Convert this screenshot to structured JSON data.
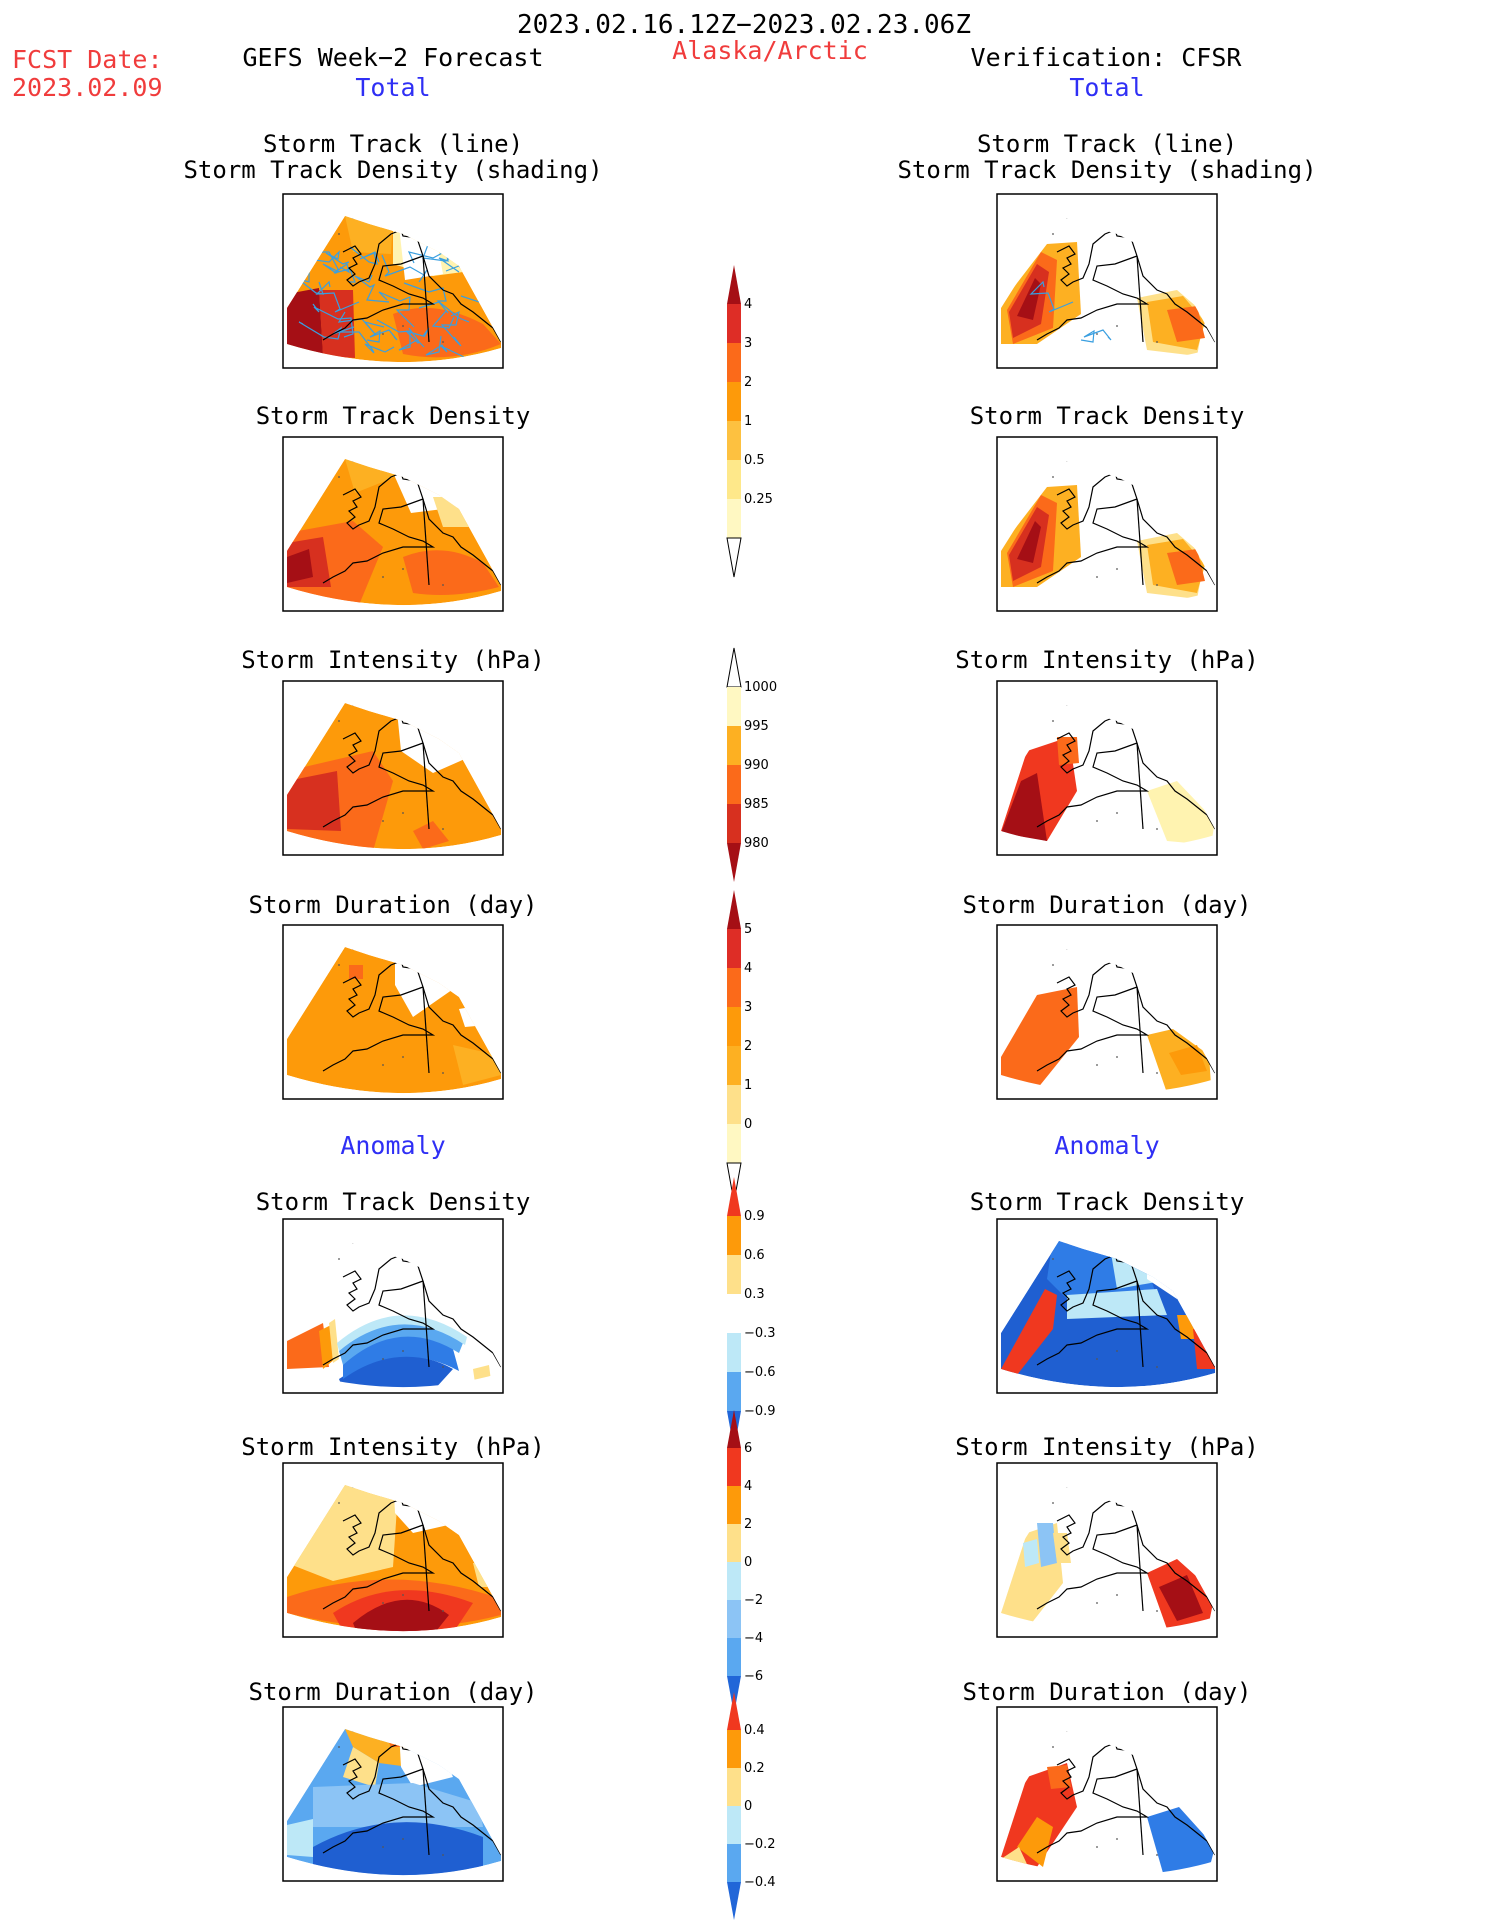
{
  "header": {
    "date_range": "2023.02.16.12Z−2023.02.23.06Z",
    "fcst_label": "FCST Date:",
    "fcst_date": "2023.02.09",
    "left_title": "GEFS Week−2 Forecast",
    "region": "Alaska/Arctic",
    "right_title": "Verification: CFSR"
  },
  "sections": {
    "total": "Total",
    "anomaly": "Anomaly"
  },
  "panel_titles": {
    "track_line": "Storm Track (line)",
    "track_shading": "Storm Track Density (shading)",
    "density": "Storm Track Density",
    "intensity": "Storm Intensity (hPa)",
    "duration": "Storm Duration (day)"
  },
  "colorbars": [
    {
      "name": "track-density-total",
      "labels": [
        "4",
        "3",
        "2",
        "1",
        "0.5",
        "0.25"
      ],
      "colors": [
        "#a50f15",
        "#de2d26",
        "#fb6a1a",
        "#fd9a0a",
        "#fdc140",
        "#fee88a",
        "#fff8c2",
        "#ffffff"
      ]
    },
    {
      "name": "intensity-total",
      "labels": [
        "1000",
        "995",
        "990",
        "985",
        "980"
      ],
      "colors": [
        "#ffffff",
        "#fff8c2",
        "#fdb022",
        "#fb6a1a",
        "#d7301f",
        "#a50f15"
      ]
    },
    {
      "name": "duration-total",
      "labels": [
        "5",
        "4",
        "3",
        "2",
        "1",
        "0"
      ],
      "colors": [
        "#a50f15",
        "#de2d26",
        "#fb6a1a",
        "#fd9a0a",
        "#fdb022",
        "#fee08a",
        "#fff8c2",
        "#ffffff"
      ]
    },
    {
      "name": "density-anomaly",
      "labels": [
        "0.9",
        "0.6",
        "0.3",
        "−0.3",
        "−0.6",
        "−0.9"
      ],
      "colors": [
        "#f0381f",
        "#fd9a0a",
        "#fee08a",
        "#ffffff",
        "#bde8f7",
        "#5aa8f0",
        "#2166d8"
      ]
    },
    {
      "name": "intensity-anomaly",
      "labels": [
        "6",
        "4",
        "2",
        "0",
        "−2",
        "−4",
        "−6"
      ],
      "colors": [
        "#a50f15",
        "#f0381f",
        "#fd9a0a",
        "#fee08a",
        "#bde8f7",
        "#8cc4f5",
        "#5aa8f0",
        "#2166d8"
      ]
    },
    {
      "name": "duration-anomaly",
      "labels": [
        "0.4",
        "0.2",
        "0",
        "−0.2",
        "−0.4"
      ],
      "colors": [
        "#f0381f",
        "#fd9a0a",
        "#fee08a",
        "#bde8f7",
        "#5aa8f0",
        "#2166d8"
      ]
    }
  ]
}
